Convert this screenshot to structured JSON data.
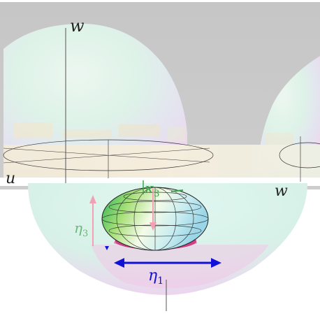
{
  "labels": {
    "w_axis": "w",
    "u_axis": "u",
    "w_right": "w",
    "kappa": "κ",
    "kappa_sub": "3",
    "eta3": "η",
    "eta3_sub": "3",
    "eta1": "η",
    "eta1_sub": "1"
  },
  "colors": {
    "background_band": "#c9c9c9",
    "sphere_fill": "#d7f3ea",
    "ellipsoid_top": "#e6f7c6",
    "ellipsoid_side": "#34c46a",
    "arrow_blue": "#1010d8",
    "eta_green": "#6ab87a",
    "kappa_green": "#3aa24a",
    "pink_arrow": "#f2a0b4",
    "magenta_base": "#b0205a"
  }
}
